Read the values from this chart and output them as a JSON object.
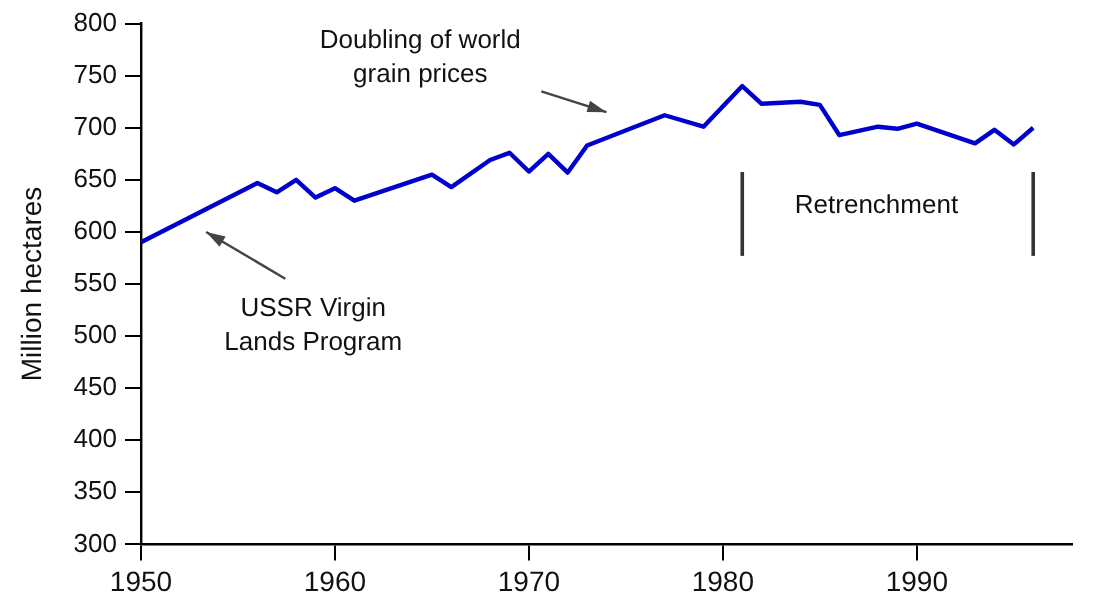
{
  "chart_data": {
    "type": "line",
    "ylabel": "Million hectares",
    "x": [
      1950,
      1956,
      1957,
      1958,
      1959,
      1960,
      1961,
      1965,
      1966,
      1968,
      1969,
      1970,
      1971,
      1972,
      1973,
      1977,
      1979,
      1981,
      1982,
      1984,
      1985,
      1986,
      1988,
      1989,
      1990,
      1993,
      1994,
      1995,
      1996
    ],
    "series": [
      {
        "color": "#0000cc",
        "values": [
          590,
          647,
          638,
          650,
          633,
          642,
          630,
          655,
          643,
          669,
          676,
          658,
          675,
          657,
          683,
          712,
          701,
          740,
          723,
          725,
          722,
          693,
          701,
          699,
          704,
          685,
          698,
          684,
          700
        ]
      }
    ],
    "xlim": [
      1950,
      1998
    ],
    "xticks": [
      1950,
      1960,
      1970,
      1980,
      1990
    ],
    "ylim": [
      300,
      800
    ],
    "yticks": [
      300,
      350,
      400,
      450,
      500,
      550,
      600,
      650,
      700,
      750,
      800
    ],
    "grid": false,
    "legend": false,
    "marker": "none",
    "line_style": "solid",
    "ref_lines": [
      {
        "axis": "x",
        "value": 1981,
        "color": "#333333"
      },
      {
        "axis": "x",
        "value": 1996,
        "color": "#333333"
      }
    ],
    "annotations": [
      "Doubling of world grain prices",
      "USSR Virgin Lands Program",
      "Retrenchment"
    ]
  }
}
